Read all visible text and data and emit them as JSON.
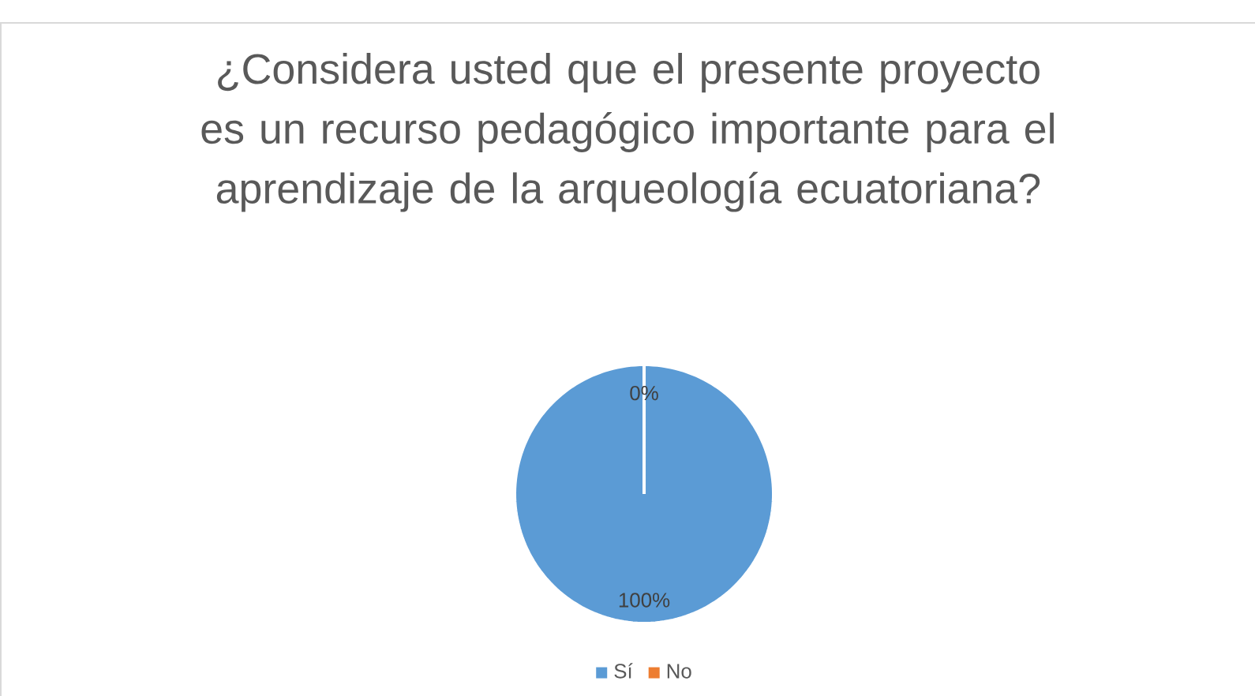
{
  "chart_data": {
    "type": "pie",
    "title": "¿Considera usted que el presente proyecto es un recurso pedagógico importante para el aprendizaje de la arqueología ecuatoriana?",
    "categories": [
      "Sí",
      "No"
    ],
    "values": [
      100,
      0
    ],
    "colors": [
      "#5b9bd5",
      "#ed7d31"
    ],
    "value_labels": [
      "100%",
      "0%"
    ],
    "legend": "bottom"
  }
}
